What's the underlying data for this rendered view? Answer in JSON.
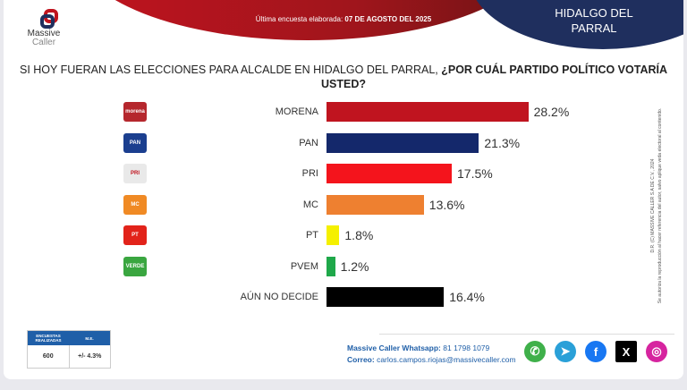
{
  "header": {
    "survey_label": "Última encuesta elaborada:",
    "survey_date": "07 DE AGOSTO DEL 2025",
    "city": "HIDALGO DEL PARRAL",
    "logo": {
      "line1": "Massive",
      "line2": "Caller"
    }
  },
  "title": {
    "normal": "SI HOY FUERAN LAS ELECCIONES PARA ALCALDE EN HIDALGO DEL PARRAL, ",
    "bold": "¿POR CUÁL PARTIDO POLÍTICO VOTARÍA USTED?"
  },
  "chart_data": {
    "type": "bar",
    "orientation": "horizontal",
    "categories": [
      "MORENA",
      "PAN",
      "PRI",
      "MC",
      "PT",
      "PVEM",
      "AÚN NO DECIDE"
    ],
    "values": [
      28.2,
      21.3,
      17.5,
      13.6,
      1.8,
      1.2,
      16.4
    ],
    "value_labels": [
      "28.2%",
      "21.3%",
      "17.5%",
      "13.6%",
      "1.8%",
      "1.2%",
      "16.4%"
    ],
    "colors": [
      "#c0141f",
      "#14286b",
      "#f4141c",
      "#ee8030",
      "#f5f000",
      "#1fa84a",
      "#000000"
    ],
    "party_logos": [
      "morena",
      "PAN",
      "PRI",
      "MC",
      "PT",
      "VERDE",
      ""
    ],
    "logo_colors": [
      "#b5272d",
      "#1b3f8f",
      "#e9e9e9",
      "#f08a24",
      "#e2231a",
      "#3aa640",
      ""
    ]
  },
  "stats": {
    "col1_header": "ENCUESTAS REALIZADAS",
    "col2_header": "M.E.",
    "sample": "600",
    "margin": "+/- 4.3%"
  },
  "contact": {
    "whatsapp_label": "Massive Caller Whatsapp:",
    "whatsapp": "81 1798 1079",
    "email_label": "Correo:",
    "email": "carlos.campos.riojas@massivecaller.com"
  },
  "social": [
    {
      "icon": "whatsapp-icon",
      "color": "#3fb04a",
      "glyph": "✆"
    },
    {
      "icon": "telegram-icon",
      "color": "#2aa0d8",
      "glyph": "➤"
    },
    {
      "icon": "facebook-icon",
      "color": "#1877f2",
      "glyph": "f"
    },
    {
      "icon": "x-icon",
      "color": "#000000",
      "glyph": "X"
    },
    {
      "icon": "instagram-icon",
      "color": "#d6249f",
      "glyph": "◎"
    }
  ],
  "copyright": {
    "line1": "D.R. (C) MASSIVE CALLER S.A DE C.V., 2024",
    "line2": "Se autoriza la reproducción al hacer referencia del autor, salvo aplique veda electoral al contenido."
  }
}
